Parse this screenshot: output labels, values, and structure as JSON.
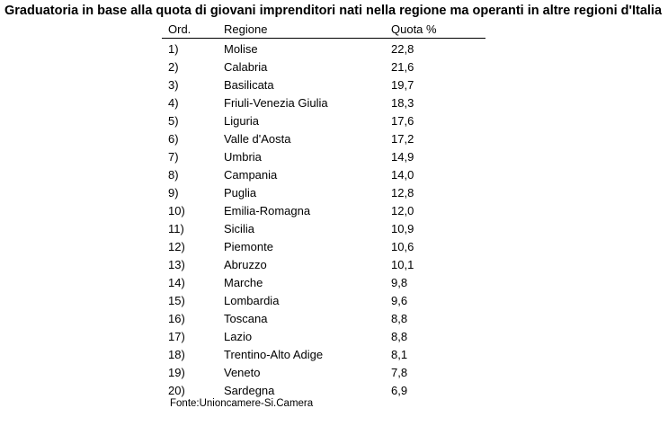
{
  "header": {
    "title": "Graduatoria in base alla quota di giovani imprenditori nati nella regione ma operanti in altre regioni d'Italia"
  },
  "table": {
    "columns": [
      "Ord.",
      "Regione",
      "Quota %"
    ],
    "rows": [
      [
        "1)",
        "Molise",
        "22,8"
      ],
      [
        "2)",
        "Calabria",
        "21,6"
      ],
      [
        "3)",
        "Basilicata",
        "19,7"
      ],
      [
        "4)",
        "Friuli-Venezia Giulia",
        "18,3"
      ],
      [
        "5)",
        "Liguria",
        "17,6"
      ],
      [
        "6)",
        "Valle d'Aosta",
        "17,2"
      ],
      [
        "7)",
        "Umbria",
        "14,9"
      ],
      [
        "8)",
        "Campania",
        "14,0"
      ],
      [
        "9)",
        "Puglia",
        "12,8"
      ],
      [
        "10)",
        "Emilia-Romagna",
        "12,0"
      ],
      [
        "11)",
        "Sicilia",
        "10,9"
      ],
      [
        "12)",
        "Piemonte",
        "10,6"
      ],
      [
        "13)",
        "Abruzzo",
        "10,1"
      ],
      [
        "14)",
        "Marche",
        "9,8"
      ],
      [
        "15)",
        "Lombardia",
        "9,6"
      ],
      [
        "16)",
        "Toscana",
        "8,8"
      ],
      [
        "17)",
        "Lazio",
        "8,8"
      ],
      [
        "18)",
        "Trentino-Alto Adige",
        "8,1"
      ],
      [
        "19)",
        "Veneto",
        "7,8"
      ],
      [
        "20)",
        "Sardegna",
        "6,9"
      ]
    ]
  },
  "footer": {
    "source": "Fonte:Unioncamere-Si.Camera"
  }
}
